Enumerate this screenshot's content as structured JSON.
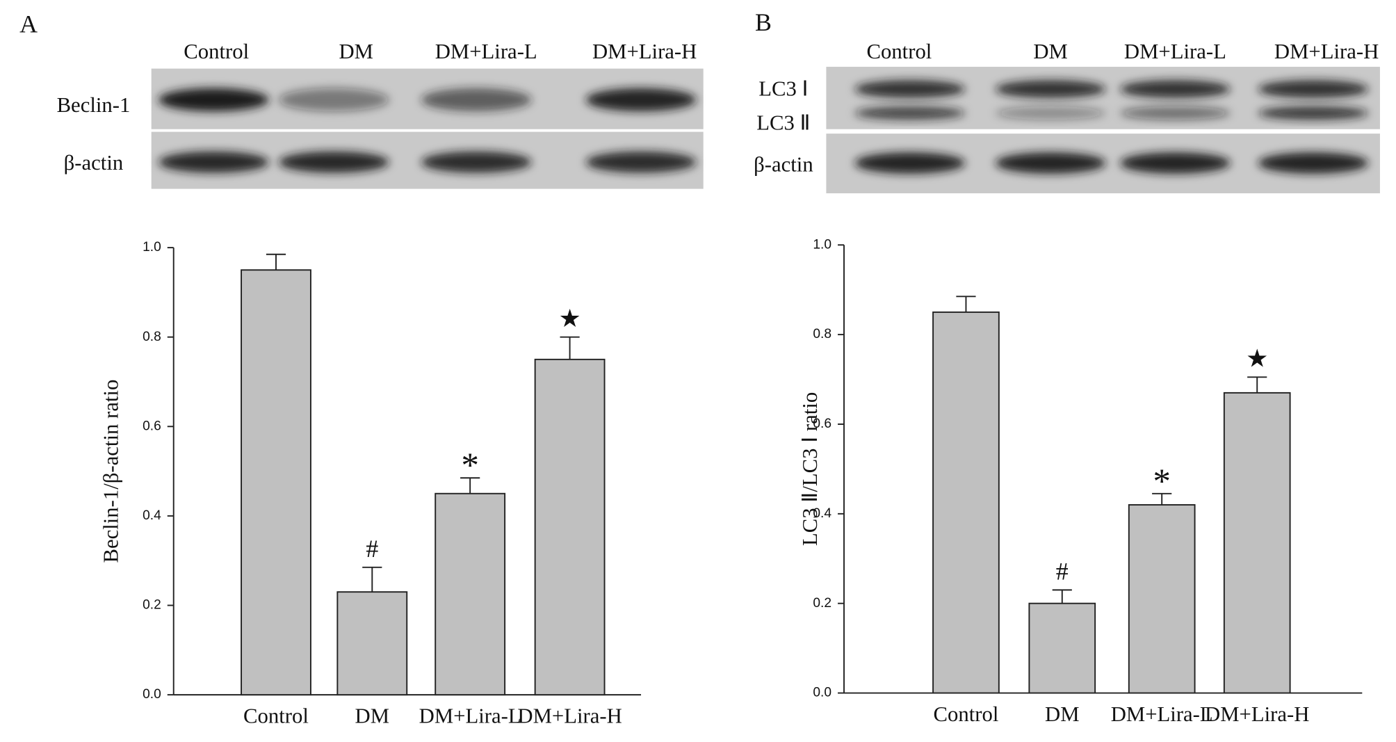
{
  "chart_data": [
    {
      "type": "bar",
      "panel_label": "A",
      "blot": {
        "lanes": [
          "Control",
          "DM",
          "DM+Lira-L",
          "DM+Lira-H"
        ],
        "rows": [
          "Beclin-1",
          "β-actin"
        ]
      },
      "ylabel": "Beclin-1/β-actin ratio",
      "categories": [
        "Control",
        "DM",
        "DM+Lira-L",
        "DM+Lira-H"
      ],
      "values": [
        0.95,
        0.23,
        0.45,
        0.75
      ],
      "errors": [
        0.035,
        0.055,
        0.035,
        0.05
      ],
      "annotations": [
        null,
        "#",
        "*",
        "★"
      ],
      "color": "#c0c0c0",
      "ylim": [
        0,
        1
      ],
      "yticks": [
        {
          "value": 0,
          "label": "0.0"
        },
        0.2,
        0.4,
        0.6,
        0.8,
        {
          "value": 1,
          "label": "1.0"
        }
      ]
    },
    {
      "type": "bar",
      "panel_label": "B",
      "blot": {
        "lanes": [
          "Control",
          "DM",
          "DM+Lira-L",
          "DM+Lira-H"
        ],
        "rows": [
          "LC3 Ⅰ",
          "LC3 Ⅱ",
          "β-actin"
        ]
      },
      "ylabel": "LC3 Ⅱ/LC3 Ⅰ ratio",
      "categories": [
        "Control",
        "DM",
        "DM+Lira-L",
        "DM+Lira-H"
      ],
      "values": [
        0.85,
        0.2,
        0.42,
        0.67
      ],
      "errors": [
        0.035,
        0.03,
        0.025,
        0.035
      ],
      "annotations": [
        null,
        "#",
        "*",
        "★"
      ],
      "color": "#c0c0c0",
      "ylim": [
        0,
        1
      ],
      "yticks": [
        {
          "value": 0,
          "label": "0.0"
        },
        0.2,
        0.4,
        0.6,
        0.8,
        {
          "value": 1,
          "label": "1.0"
        }
      ]
    }
  ]
}
